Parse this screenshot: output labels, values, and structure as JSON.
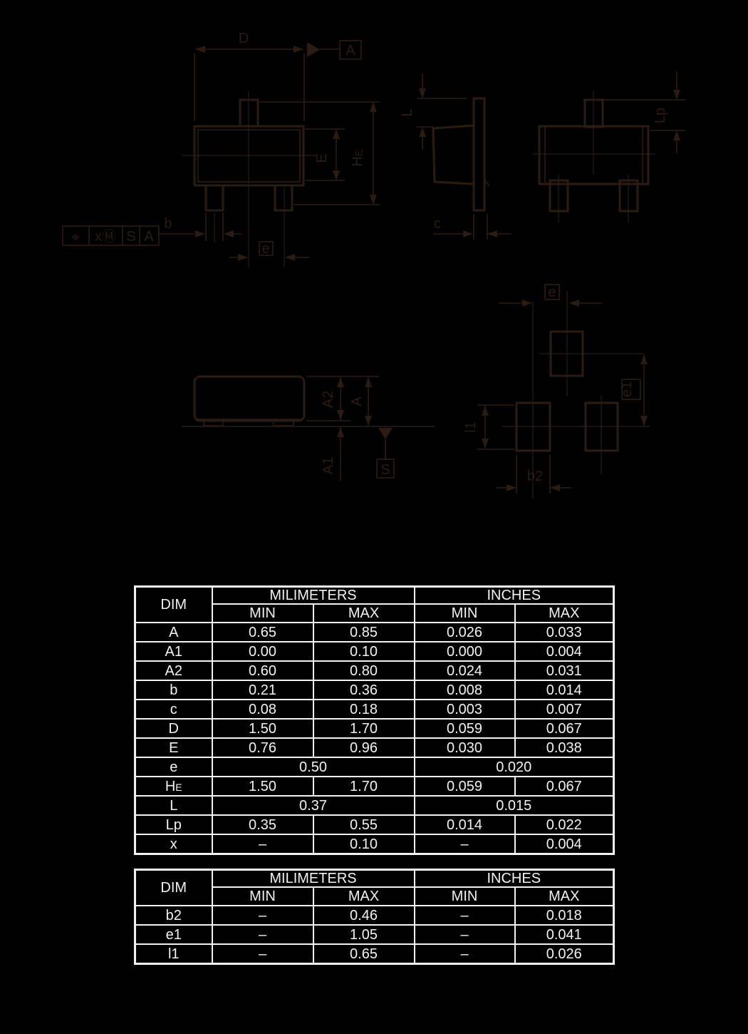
{
  "drawing": {
    "line_color": "#2b1c13",
    "labels": {
      "d": "D",
      "datum_a": "A",
      "e_body": "E",
      "he_main": "H",
      "he_sub": "E",
      "b": "b",
      "e_pitch": "e",
      "fcf_position": "⌖",
      "fcf_tolerance": "xⓂ",
      "fcf_s": "S",
      "fcf_a": "A",
      "l": "L",
      "c": "c",
      "lp": "Lp",
      "a2": "A2",
      "a": "A",
      "a1": "A1",
      "datum_s": "S",
      "land_e": "e",
      "e1": "e1",
      "l1": "l1",
      "b2": "b2"
    }
  },
  "table_color": "#f2f2f2",
  "tables": [
    {
      "columns": {
        "dim": "DIM",
        "mm": "MILIMETERS",
        "inches": "INCHES",
        "min": "MIN",
        "max": "MAX"
      },
      "rows": [
        {
          "dim": "A",
          "cells": [
            "0.65",
            "0.85",
            "0.026",
            "0.033"
          ]
        },
        {
          "dim": "A1",
          "cells": [
            "0.00",
            "0.10",
            "0.000",
            "0.004"
          ]
        },
        {
          "dim": "A2",
          "cells": [
            "0.60",
            "0.80",
            "0.024",
            "0.031"
          ]
        },
        {
          "dim": "b",
          "cells": [
            "0.21",
            "0.36",
            "0.008",
            "0.014"
          ]
        },
        {
          "dim": "c",
          "cells": [
            "0.08",
            "0.18",
            "0.003",
            "0.007"
          ]
        },
        {
          "dim": "D",
          "cells": [
            "1.50",
            "1.70",
            "0.059",
            "0.067"
          ]
        },
        {
          "dim": "E",
          "cells": [
            "0.76",
            "0.96",
            "0.030",
            "0.038"
          ]
        },
        {
          "dim": "e",
          "merged": true,
          "cells": [
            "0.50",
            "0.020"
          ]
        },
        {
          "dim": "H",
          "dim_suffix": "E",
          "cells": [
            "1.50",
            "1.70",
            "0.059",
            "0.067"
          ]
        },
        {
          "dim": "L",
          "merged": true,
          "cells": [
            "0.37",
            "0.015"
          ]
        },
        {
          "dim": "Lp",
          "cells": [
            "0.35",
            "0.55",
            "0.014",
            "0.022"
          ]
        },
        {
          "dim": "x",
          "cells": [
            "–",
            "0.10",
            "–",
            "0.004"
          ]
        }
      ]
    },
    {
      "columns": {
        "dim": "DIM",
        "mm": "MILIMETERS",
        "inches": "INCHES",
        "min": "MIN",
        "max": "MAX"
      },
      "rows": [
        {
          "dim": "b2",
          "cells": [
            "–",
            "0.46",
            "–",
            "0.018"
          ]
        },
        {
          "dim": "e1",
          "cells": [
            "–",
            "1.05",
            "–",
            "0.041"
          ]
        },
        {
          "dim": "l1",
          "cells": [
            "–",
            "0.65",
            "–",
            "0.026"
          ]
        }
      ]
    }
  ]
}
